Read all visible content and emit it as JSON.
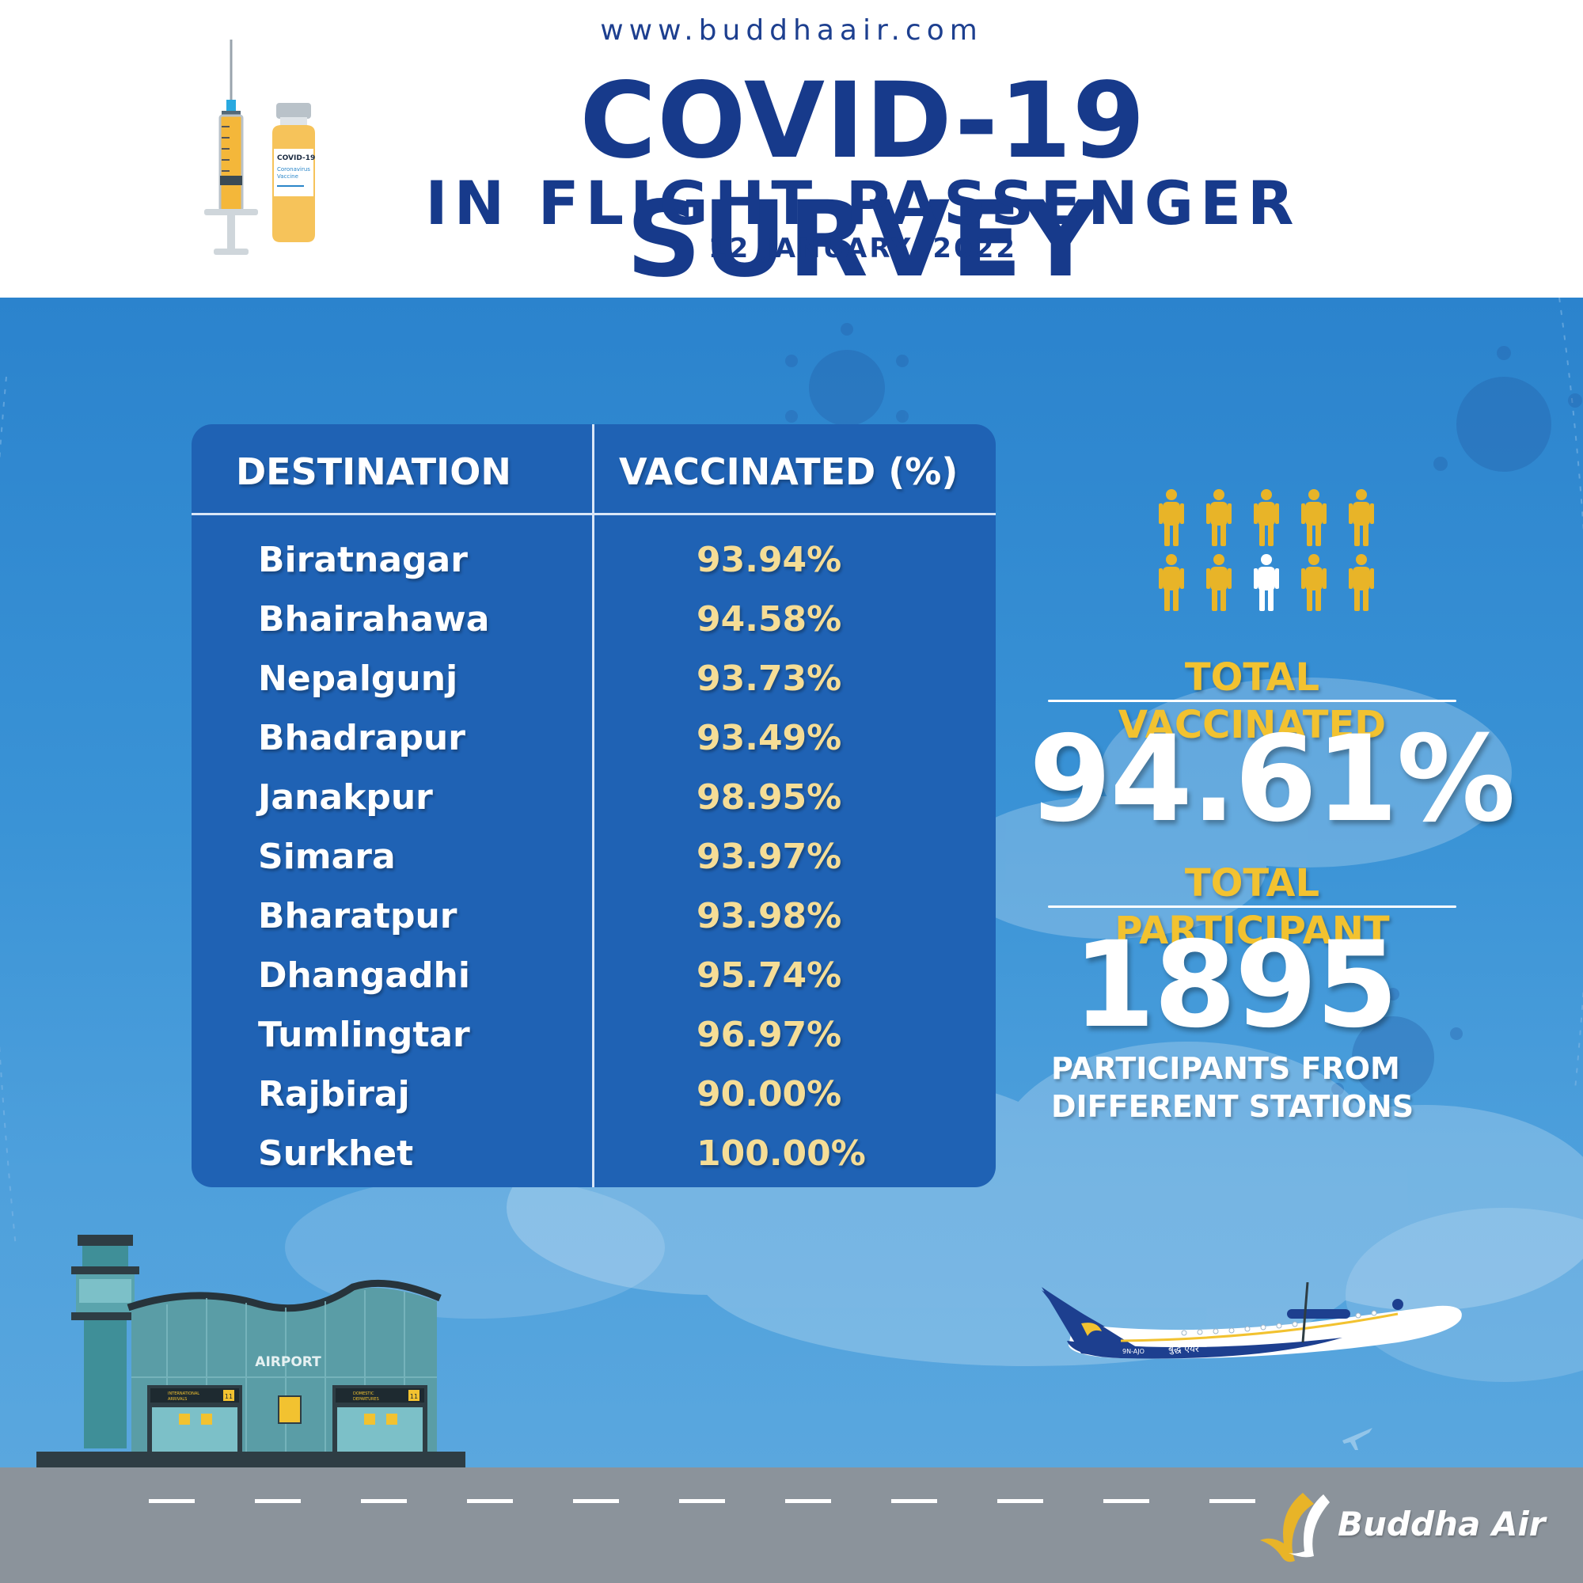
{
  "header": {
    "site_url": "www.buddhaair.com",
    "title": "COVID-19 SURVEY",
    "subtitle": "IN FLIGHT PASSENGER",
    "date": "12 JANUARY, 2022",
    "vaccine_label_line1": "COVID-19",
    "vaccine_label_line2": "Coronavirus",
    "vaccine_label_line3": "Vaccine"
  },
  "table": {
    "headers": [
      "DESTINATION",
      "VACCINATED (%)"
    ],
    "rows": [
      {
        "destination": "Biratnagar",
        "vaccinated": "93.94%"
      },
      {
        "destination": "Bhairahawa",
        "vaccinated": "94.58%"
      },
      {
        "destination": "Nepalgunj",
        "vaccinated": "93.73%"
      },
      {
        "destination": "Bhadrapur",
        "vaccinated": "93.49%"
      },
      {
        "destination": "Janakpur",
        "vaccinated": "98.95%"
      },
      {
        "destination": "Simara",
        "vaccinated": "93.97%"
      },
      {
        "destination": "Bharatpur",
        "vaccinated": "93.98%"
      },
      {
        "destination": "Dhangadhi",
        "vaccinated": "95.74%"
      },
      {
        "destination": "Tumlingtar",
        "vaccinated": "96.97%"
      },
      {
        "destination": "Rajbiraj",
        "vaccinated": "90.00%"
      },
      {
        "destination": "Surkhet",
        "vaccinated": "100.00%"
      }
    ]
  },
  "stats": {
    "total_vaccinated_label": "TOTAL VACCINATED",
    "total_vaccinated_value": "94.61%",
    "total_participant_label": "TOTAL PARTICIPANT",
    "total_participant_value": "1895",
    "participants_note_line1": "PARTICIPANTS FROM",
    "participants_note_line2": "DIFFERENT STATIONS"
  },
  "people_icons": {
    "total": 10,
    "highlighted_index": 7,
    "color_vaccinated": "#e8b428",
    "color_other": "#ffffff"
  },
  "airport": {
    "label": "AIRPORT",
    "sign_left_line1": "INTERNATIONAL",
    "sign_left_line2": "ARRIVALS",
    "sign_right_line1": "DOMESTIC",
    "sign_right_line2": "DEPARTURES",
    "gate_number": "11"
  },
  "plane": {
    "registration": "9N-AJO",
    "livery_text": "बुद्ध एयर"
  },
  "brand": {
    "name": "Buddha Air"
  },
  "colors": {
    "title_blue": "#173a8b",
    "table_bg": "#1f62b4",
    "value_yellow": "#f5dd96",
    "stat_gold": "#f2c230",
    "runway_gray": "#8b939b"
  }
}
